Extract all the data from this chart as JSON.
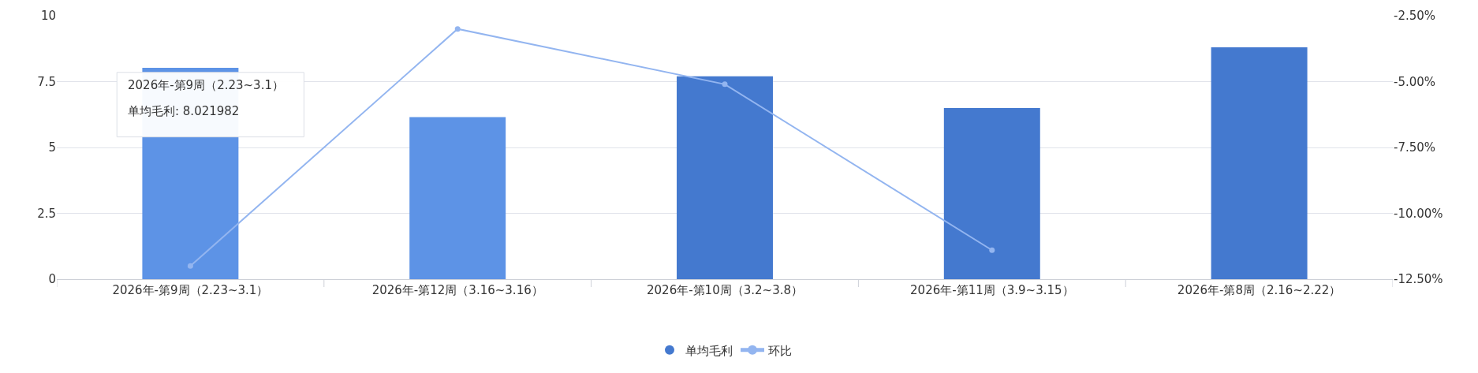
{
  "chart_data": {
    "type": "bar",
    "categories": [
      "2026年-第9周（2.23~3.1）",
      "2026年-第12周（3.16~3.16）",
      "2026年-第10周（3.2~3.8）",
      "2026年-第11周（3.9~3.15）",
      "2026年-第8周（2.16~2.22）"
    ],
    "series": [
      {
        "name": "单均毛利",
        "color": "#4479cf",
        "colors": [
          "#5d93e6",
          "#5d93e6",
          "#4479cf",
          "#4479cf",
          "#4479cf"
        ],
        "values": [
          8.021982,
          6.15,
          7.7,
          6.5,
          8.8
        ]
      },
      {
        "name": "环比",
        "type": "line",
        "axis": "y2",
        "color": "#93b5f0",
        "values": [
          -12.0,
          -3.0,
          -5.1,
          -11.4,
          null
        ]
      }
    ],
    "ylim": [
      0,
      10
    ],
    "yticks": [
      0,
      2.5,
      5,
      7.5,
      10
    ],
    "y2lim": [
      -12.5,
      -2.5
    ],
    "y2ticks": [
      {
        "value": -12.5,
        "label": "-12.50%"
      },
      {
        "value": -10,
        "label": "-10.00%"
      },
      {
        "value": -7.5,
        "label": "-7.50%"
      },
      {
        "value": -5,
        "label": "-5.00%"
      },
      {
        "value": -2.5,
        "label": "-2.50%"
      }
    ],
    "grid": "y",
    "legend": "bottom",
    "marker": "circle",
    "line_style": "solid",
    "annotations": [
      "2026年-第9周（2.23~3.1）",
      "单均毛利: 8.021982"
    ]
  }
}
